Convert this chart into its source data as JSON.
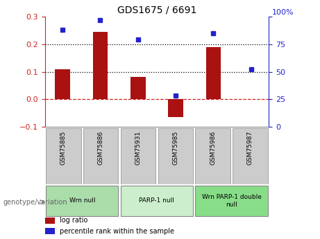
{
  "title": "GDS1675 / 6691",
  "samples": [
    "GSM75885",
    "GSM75886",
    "GSM75931",
    "GSM75985",
    "GSM75986",
    "GSM75987"
  ],
  "log_ratio": [
    0.11,
    0.245,
    0.08,
    -0.065,
    0.19,
    0.0
  ],
  "percentile": [
    88,
    97,
    79,
    28,
    85,
    52
  ],
  "ylim_left": [
    -0.1,
    0.3
  ],
  "ylim_right": [
    0,
    100
  ],
  "yticks_left": [
    -0.1,
    0.0,
    0.1,
    0.2,
    0.3
  ],
  "yticks_right": [
    0,
    25,
    50,
    75,
    100
  ],
  "bar_color": "#aa1111",
  "dot_color": "#2222cc",
  "hline_dotted_values": [
    0.1,
    0.2
  ],
  "hline_zero_color": "#cc2222",
  "groups": [
    {
      "label": "Wrn null",
      "start": 0,
      "end": 2,
      "color": "#aaddaa"
    },
    {
      "label": "PARP-1 null",
      "start": 2,
      "end": 4,
      "color": "#cceecc"
    },
    {
      "label": "Wrn PARP-1 double\nnull",
      "start": 4,
      "end": 6,
      "color": "#88dd88"
    }
  ],
  "legend_items": [
    {
      "label": "log ratio",
      "color": "#aa1111"
    },
    {
      "label": "percentile rank within the sample",
      "color": "#2222cc"
    }
  ],
  "genotype_label": "genotype/variation",
  "background_color": "#ffffff",
  "plot_bg_color": "#ffffff",
  "tick_label_color_left": "#cc2222",
  "tick_label_color_right": "#2222cc",
  "sample_box_color": "#cccccc",
  "sample_box_edge_color": "#999999"
}
